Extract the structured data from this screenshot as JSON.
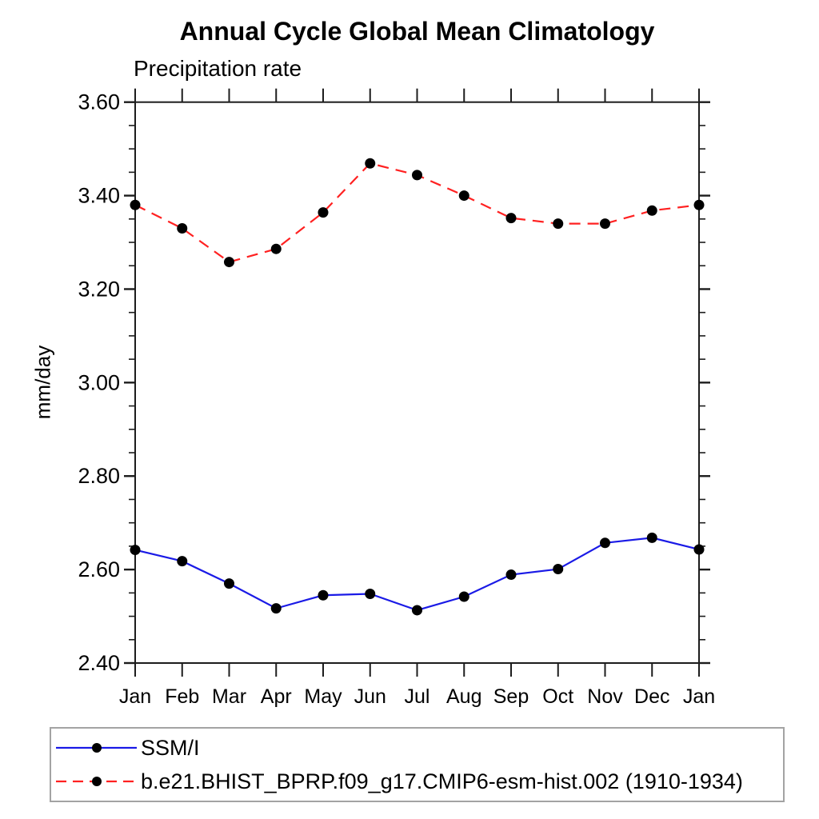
{
  "colors": {
    "background": "#ffffff",
    "axis": "#1c1c1c",
    "text": "#000000",
    "legend_border": "#a3a3a3",
    "ssmi_blue": "#1a1ae6",
    "model_red": "#ff2121",
    "marker_black": "#000000"
  },
  "chart_data": {
    "type": "line",
    "title": "Annual Cycle Global Mean Climatology",
    "subtitle": "Precipitation rate",
    "ylabel": "mm/day",
    "xlabel": "",
    "x_categories": [
      "Jan",
      "Feb",
      "Mar",
      "Apr",
      "May",
      "Jun",
      "Jul",
      "Aug",
      "Sep",
      "Oct",
      "Nov",
      "Dec",
      "Jan"
    ],
    "ylim": [
      2.4,
      3.6
    ],
    "ytick_major_step": 0.2,
    "ytick_minor_step": 0.05,
    "ytick_labels": [
      "2.40",
      "2.60",
      "2.80",
      "3.00",
      "3.20",
      "3.40",
      "3.60"
    ],
    "grid": false,
    "legend_position": "bottom-left-box",
    "series": [
      {
        "name": "SSM/I",
        "color": "#1a1ae6",
        "line_style": "solid",
        "marker": "filled-circle",
        "marker_color": "#000000",
        "values": [
          2.642,
          2.618,
          2.57,
          2.517,
          2.545,
          2.548,
          2.513,
          2.542,
          2.589,
          2.601,
          2.657,
          2.668,
          2.643
        ]
      },
      {
        "name": "b.e21.BHIST_BPRP.f09_g17.CMIP6-esm-hist.002 (1910-1934)",
        "color": "#ff2121",
        "line_style": "dashed",
        "marker": "filled-circle",
        "marker_color": "#000000",
        "values": [
          3.38,
          3.33,
          3.258,
          3.286,
          3.364,
          3.469,
          3.444,
          3.4,
          3.352,
          3.34,
          3.34,
          3.368,
          3.38
        ]
      }
    ]
  }
}
